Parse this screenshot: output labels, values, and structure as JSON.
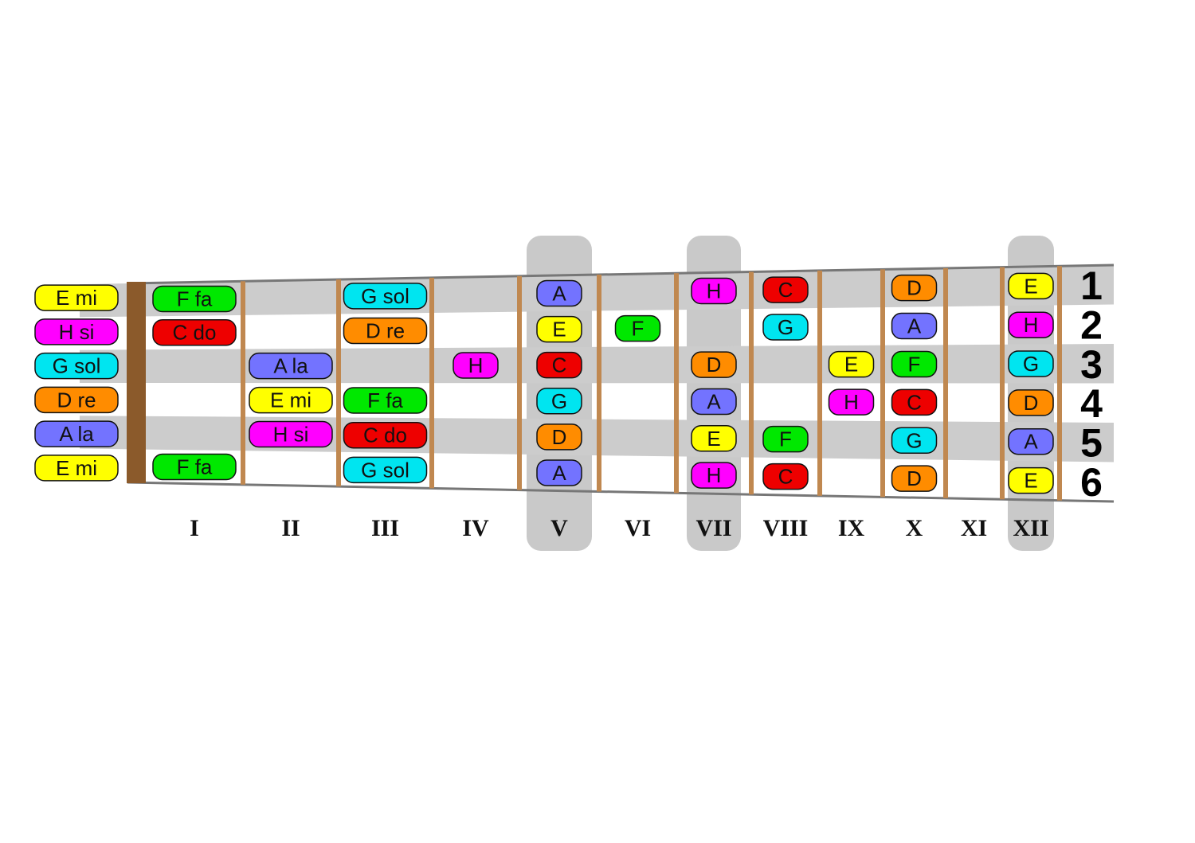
{
  "colors": {
    "C": "#ee0000",
    "D": "#ff8c00",
    "E": "#ffff00",
    "F": "#00e800",
    "G": "#00e5f0",
    "A": "#7373ff",
    "H": "#ff00ff",
    "string_stripe": "#cccccc",
    "fret_wire": "#c08850",
    "nut": "#8b5a2b",
    "highlight_column": "#c9c9c9"
  },
  "string_numbers": [
    "1",
    "2",
    "3",
    "4",
    "5",
    "6"
  ],
  "fret_labels": [
    "I",
    "II",
    "III",
    "IV",
    "V",
    "VI",
    "VII",
    "VIII",
    "IX",
    "X",
    "XI",
    "XII"
  ],
  "highlighted_frets": [
    5,
    7,
    12
  ],
  "open_notes": [
    {
      "string": 1,
      "label": "E  mi",
      "note": "E"
    },
    {
      "string": 2,
      "label": "H  si",
      "note": "H"
    },
    {
      "string": 3,
      "label": "G sol",
      "note": "G"
    },
    {
      "string": 4,
      "label": "D  re",
      "note": "D"
    },
    {
      "string": 5,
      "label": "A  la",
      "note": "A"
    },
    {
      "string": 6,
      "label": "E  mi",
      "note": "E"
    }
  ],
  "fretted_notes": [
    {
      "fret": 1,
      "string": 1,
      "label": "F  fa",
      "note": "F"
    },
    {
      "fret": 1,
      "string": 2,
      "label": "C  do",
      "note": "C"
    },
    {
      "fret": 1,
      "string": 6,
      "label": "F  fa",
      "note": "F"
    },
    {
      "fret": 2,
      "string": 3,
      "label": "A  la",
      "note": "A"
    },
    {
      "fret": 2,
      "string": 4,
      "label": "E  mi",
      "note": "E"
    },
    {
      "fret": 2,
      "string": 5,
      "label": "H  si",
      "note": "H"
    },
    {
      "fret": 3,
      "string": 1,
      "label": "G sol",
      "note": "G"
    },
    {
      "fret": 3,
      "string": 2,
      "label": "D  re",
      "note": "D"
    },
    {
      "fret": 3,
      "string": 4,
      "label": "F  fa",
      "note": "F"
    },
    {
      "fret": 3,
      "string": 5,
      "label": "C  do",
      "note": "C"
    },
    {
      "fret": 3,
      "string": 6,
      "label": "G sol",
      "note": "G"
    },
    {
      "fret": 4,
      "string": 3,
      "label": "H",
      "note": "H"
    },
    {
      "fret": 5,
      "string": 1,
      "label": "A",
      "note": "A"
    },
    {
      "fret": 5,
      "string": 2,
      "label": "E",
      "note": "E"
    },
    {
      "fret": 5,
      "string": 3,
      "label": "C",
      "note": "C"
    },
    {
      "fret": 5,
      "string": 4,
      "label": "G",
      "note": "G"
    },
    {
      "fret": 5,
      "string": 5,
      "label": "D",
      "note": "D"
    },
    {
      "fret": 5,
      "string": 6,
      "label": "A",
      "note": "A"
    },
    {
      "fret": 6,
      "string": 2,
      "label": "F",
      "note": "F"
    },
    {
      "fret": 7,
      "string": 1,
      "label": "H",
      "note": "H"
    },
    {
      "fret": 7,
      "string": 3,
      "label": "D",
      "note": "D"
    },
    {
      "fret": 7,
      "string": 4,
      "label": "A",
      "note": "A"
    },
    {
      "fret": 7,
      "string": 5,
      "label": "E",
      "note": "E"
    },
    {
      "fret": 7,
      "string": 6,
      "label": "H",
      "note": "H"
    },
    {
      "fret": 8,
      "string": 1,
      "label": "C",
      "note": "C"
    },
    {
      "fret": 8,
      "string": 2,
      "label": "G",
      "note": "G"
    },
    {
      "fret": 8,
      "string": 5,
      "label": "F",
      "note": "F"
    },
    {
      "fret": 8,
      "string": 6,
      "label": "C",
      "note": "C"
    },
    {
      "fret": 9,
      "string": 3,
      "label": "E",
      "note": "E"
    },
    {
      "fret": 9,
      "string": 4,
      "label": "H",
      "note": "H"
    },
    {
      "fret": 10,
      "string": 1,
      "label": "D",
      "note": "D"
    },
    {
      "fret": 10,
      "string": 2,
      "label": "A",
      "note": "A"
    },
    {
      "fret": 10,
      "string": 3,
      "label": "F",
      "note": "F"
    },
    {
      "fret": 10,
      "string": 4,
      "label": "C",
      "note": "C"
    },
    {
      "fret": 10,
      "string": 5,
      "label": "G",
      "note": "G"
    },
    {
      "fret": 10,
      "string": 6,
      "label": "D",
      "note": "D"
    },
    {
      "fret": 12,
      "string": 1,
      "label": "E",
      "note": "E"
    },
    {
      "fret": 12,
      "string": 2,
      "label": "H",
      "note": "H"
    },
    {
      "fret": 12,
      "string": 3,
      "label": "G",
      "note": "G"
    },
    {
      "fret": 12,
      "string": 4,
      "label": "D",
      "note": "D"
    },
    {
      "fret": 12,
      "string": 5,
      "label": "A",
      "note": "A"
    },
    {
      "fret": 12,
      "string": 6,
      "label": "E",
      "note": "E"
    }
  ]
}
